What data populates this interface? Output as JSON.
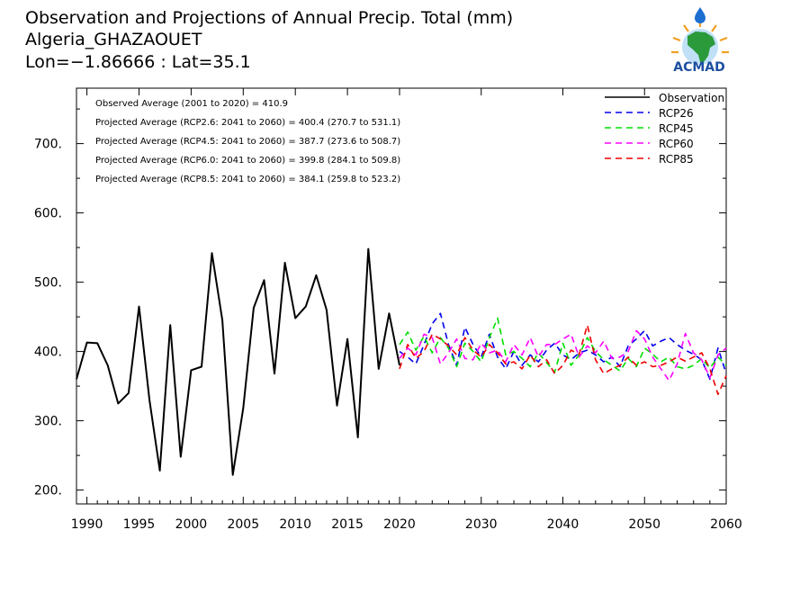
{
  "header": {
    "title": "Observation and Projections of Annual Precip. Total (mm)",
    "station": "Algeria_GHAZAOUET",
    "location": "Lon=−1.86666 : Lat=35.1"
  },
  "logo": {
    "text": "ACMAD"
  },
  "stats": [
    "Observed Average (2001 to 2020) = 410.9",
    "Projected Average (RCP2.6: 2041 to 2060) = 400.4 (270.7 to 531.1)",
    "Projected Average (RCP4.5: 2041 to 2060) = 387.7 (273.6 to 508.7)",
    "Projected Average (RCP6.0: 2041 to 2060) = 399.8 (284.1 to 509.8)",
    "Projected Average (RCP8.5: 2041 to 2060) = 384.1 (259.8 to 523.2)"
  ],
  "chart_data": {
    "type": "line",
    "title": "Observation and Projections of Annual Precip. Total (mm)",
    "xlim": [
      1989,
      2060
    ],
    "ylim": [
      180,
      780
    ],
    "x_ticks": [
      {
        "value": 1990,
        "label": "1990"
      },
      {
        "value": 1995,
        "label": "1995"
      },
      {
        "value": 2000,
        "label": "2000"
      },
      {
        "value": 2005,
        "label": "2005"
      },
      {
        "value": 2010,
        "label": "2010"
      },
      {
        "value": 2015,
        "label": "2015"
      },
      {
        "value": 2020,
        "label": "2020"
      },
      {
        "value": 2030,
        "label": "2030"
      },
      {
        "value": 2040,
        "label": "2040"
      },
      {
        "value": 2050,
        "label": "2050"
      },
      {
        "value": 2060,
        "label": "2060"
      }
    ],
    "y_ticks": [
      {
        "value": 200,
        "label": "200."
      },
      {
        "value": 300,
        "label": "300."
      },
      {
        "value": 400,
        "label": "400."
      },
      {
        "value": 500,
        "label": "500."
      },
      {
        "value": 600,
        "label": "600."
      },
      {
        "value": 700,
        "label": "700."
      }
    ],
    "legend_position": "top-right",
    "series": [
      {
        "name": "Observation",
        "color": "#000000",
        "dashed": false,
        "x": [
          1989,
          1990,
          1991,
          1992,
          1993,
          1994,
          1995,
          1996,
          1997,
          1998,
          1999,
          2000,
          2001,
          2002,
          2003,
          2004,
          2005,
          2006,
          2007,
          2008,
          2009,
          2010,
          2011,
          2012,
          2013,
          2014,
          2015,
          2016,
          2017,
          2018,
          2019,
          2020
        ],
        "values": [
          360,
          413,
          412,
          380,
          325,
          340,
          465,
          330,
          228,
          438,
          248,
          373,
          378,
          542,
          445,
          222,
          318,
          463,
          503,
          368,
          528,
          448,
          465,
          510,
          460,
          322,
          418,
          276,
          548,
          375,
          455,
          380
        ]
      },
      {
        "name": "RCP26",
        "color": "#0000ee",
        "dashed": true,
        "x": [
          2020,
          2021,
          2022,
          2023,
          2024,
          2025,
          2026,
          2027,
          2028,
          2029,
          2030,
          2031,
          2032,
          2033,
          2034,
          2035,
          2036,
          2037,
          2038,
          2039,
          2040,
          2041,
          2042,
          2043,
          2044,
          2045,
          2046,
          2047,
          2048,
          2049,
          2050,
          2051,
          2052,
          2053,
          2054,
          2055,
          2056,
          2057,
          2058,
          2059,
          2060
        ],
        "values": [
          400,
          392,
          382,
          410,
          440,
          455,
          410,
          380,
          435,
          410,
          392,
          425,
          392,
          375,
          400,
          380,
          395,
          385,
          402,
          412,
          395,
          388,
          398,
          402,
          395,
          385,
          392,
          378,
          408,
          418,
          430,
          408,
          415,
          420,
          410,
          402,
          396,
          388,
          360,
          405,
          368
        ]
      },
      {
        "name": "RCP45",
        "color": "#00e000",
        "dashed": true,
        "x": [
          2020,
          2021,
          2022,
          2023,
          2024,
          2025,
          2026,
          2027,
          2028,
          2029,
          2030,
          2031,
          2032,
          2033,
          2034,
          2035,
          2036,
          2037,
          2038,
          2039,
          2040,
          2041,
          2042,
          2043,
          2044,
          2045,
          2046,
          2047,
          2048,
          2049,
          2050,
          2051,
          2052,
          2053,
          2054,
          2055,
          2056,
          2057,
          2058,
          2059,
          2060
        ],
        "values": [
          410,
          428,
          402,
          422,
          398,
          420,
          405,
          378,
          412,
          400,
          385,
          420,
          448,
          395,
          400,
          390,
          378,
          398,
          384,
          370,
          412,
          380,
          395,
          420,
          400,
          388,
          380,
          372,
          390,
          378,
          405,
          396,
          385,
          392,
          378,
          375,
          380,
          390,
          376,
          392,
          380
        ]
      },
      {
        "name": "RCP60",
        "color": "#ff00ff",
        "dashed": true,
        "x": [
          2020,
          2021,
          2022,
          2023,
          2024,
          2025,
          2026,
          2027,
          2028,
          2029,
          2030,
          2031,
          2032,
          2033,
          2034,
          2035,
          2036,
          2037,
          2038,
          2039,
          2040,
          2041,
          2042,
          2043,
          2044,
          2045,
          2046,
          2047,
          2048,
          2049,
          2050,
          2051,
          2052,
          2053,
          2054,
          2055,
          2056,
          2057,
          2058,
          2059,
          2060
        ],
        "values": [
          390,
          405,
          395,
          425,
          420,
          382,
          398,
          418,
          390,
          388,
          412,
          398,
          402,
          385,
          410,
          395,
          420,
          392,
          410,
          410,
          418,
          425,
          392,
          408,
          398,
          415,
          390,
          392,
          400,
          430,
          418,
          392,
          375,
          358,
          382,
          426,
          398,
          388,
          362,
          395,
          405
        ]
      },
      {
        "name": "RCP85",
        "color": "#ee0000",
        "dashed": true,
        "x": [
          2020,
          2021,
          2022,
          2023,
          2024,
          2025,
          2026,
          2027,
          2028,
          2029,
          2030,
          2031,
          2032,
          2033,
          2034,
          2035,
          2036,
          2037,
          2038,
          2039,
          2040,
          2041,
          2042,
          2043,
          2044,
          2045,
          2046,
          2047,
          2048,
          2049,
          2050,
          2051,
          2052,
          2053,
          2054,
          2055,
          2056,
          2057,
          2058,
          2059,
          2060
        ],
        "values": [
          375,
          410,
          390,
          400,
          425,
          418,
          408,
          395,
          420,
          402,
          392,
          410,
          398,
          382,
          385,
          375,
          395,
          378,
          388,
          368,
          380,
          402,
          396,
          438,
          388,
          368,
          375,
          380,
          392,
          380,
          385,
          378,
          380,
          385,
          392,
          386,
          392,
          398,
          375,
          338,
          365
        ]
      }
    ]
  }
}
